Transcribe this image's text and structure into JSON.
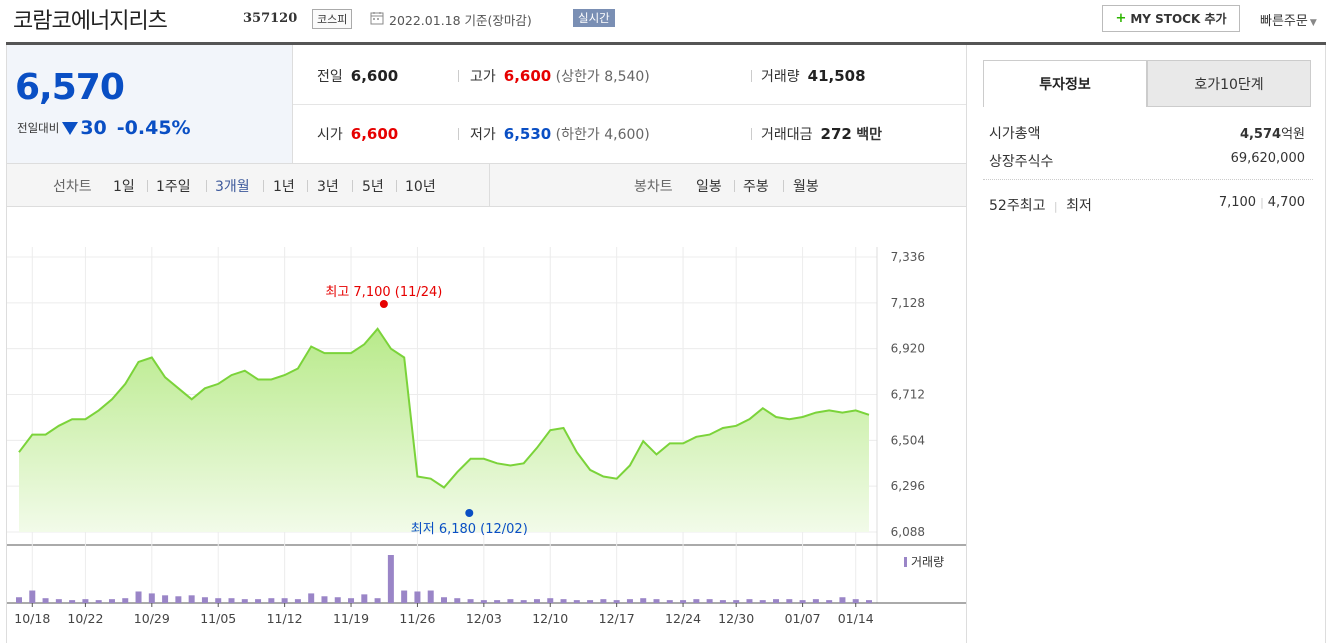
{
  "header": {
    "title": "코람코에너지리츠",
    "code": "357120",
    "market": "코스피",
    "date_text": "2022.01.18 기준(장마감)",
    "realtime": "실시간",
    "mystock_label": "MY STOCK 추가",
    "fast_order": "빠른주문"
  },
  "price": {
    "current": "6,570",
    "change_label": "전일대비",
    "change": "30",
    "change_pct": "-0.45%"
  },
  "info": {
    "prev_close_label": "전일",
    "prev_close": "6,600",
    "high_label": "고가",
    "high": "6,600",
    "upper_limit": "(상한가 8,540)",
    "volume_label": "거래량",
    "volume": "41,508",
    "open_label": "시가",
    "open": "6,600",
    "low_label": "저가",
    "low": "6,530",
    "lower_limit": "(하한가 4,600)",
    "amount_label": "거래대금",
    "amount": "272",
    "amount_unit": "백만"
  },
  "periods": {
    "line_label": "선차트",
    "line_items": [
      "1일",
      "1주일",
      "3개월",
      "1년",
      "3년",
      "5년",
      "10년"
    ],
    "active": "3개월",
    "candle_label": "봉차트",
    "candle_items": [
      "일봉",
      "주봉",
      "월봉"
    ]
  },
  "right_panel": {
    "tab_active": "투자정보",
    "tab_inactive": "호가10단계",
    "market_cap_label": "시가총액",
    "market_cap_value": "4,574",
    "market_cap_unit": "억원",
    "shares_label": "상장주식수",
    "shares_value": "69,620,000",
    "w52_label_high": "52주최고",
    "w52_label_low": "최저",
    "w52_high": "7,100",
    "w52_low": "4,700"
  },
  "chart_data": {
    "type": "area",
    "y_ticks": [
      "7,336",
      "7,128",
      "6,920",
      "6,712",
      "6,504",
      "6,296",
      "6,088"
    ],
    "ylim": [
      6088,
      7336
    ],
    "x_labels": [
      "10/18",
      "10/22",
      "10/29",
      "11/05",
      "11/12",
      "11/19",
      "11/26",
      "12/03",
      "12/10",
      "12/17",
      "12/24",
      "12/30",
      "01/07",
      "01/14"
    ],
    "max_annotation": "최고 7,100 (11/24)",
    "min_annotation": "최저 6,180 (12/02)",
    "max_index": 28,
    "min_index": 33,
    "volume_legend": "거래량",
    "color_line": "#7bd33a",
    "color_max": "#e60000",
    "color_min": "#0a4fc4",
    "color_volume": "#9a85c7",
    "values": [
      6450,
      6530,
      6530,
      6570,
      6600,
      6600,
      6640,
      6690,
      6760,
      6860,
      6880,
      6790,
      6740,
      6690,
      6740,
      6760,
      6800,
      6820,
      6780,
      6780,
      6800,
      6830,
      6930,
      6900,
      6900,
      6900,
      6940,
      7010,
      6920,
      6880,
      6340,
      6330,
      6290,
      6360,
      6420,
      6420,
      6400,
      6390,
      6400,
      6470,
      6550,
      6560,
      6450,
      6370,
      6340,
      6330,
      6390,
      6500,
      6440,
      6490,
      6490,
      6520,
      6530,
      6560,
      6570,
      6600,
      6650,
      6610,
      6600,
      6610,
      6630,
      6640,
      6630,
      6640,
      6620
    ],
    "volume": [
      6,
      13,
      5,
      4,
      3,
      4,
      3,
      4,
      5,
      12,
      10,
      8,
      7,
      8,
      6,
      5,
      5,
      4,
      4,
      5,
      5,
      4,
      10,
      7,
      6,
      5,
      9,
      5,
      50,
      13,
      12,
      13,
      6,
      5,
      4,
      3,
      3,
      4,
      3,
      4,
      5,
      4,
      3,
      3,
      4,
      3,
      4,
      5,
      4,
      3,
      3,
      4,
      4,
      3,
      3,
      4,
      3,
      4,
      4,
      3,
      4,
      3,
      6,
      4,
      3
    ]
  }
}
